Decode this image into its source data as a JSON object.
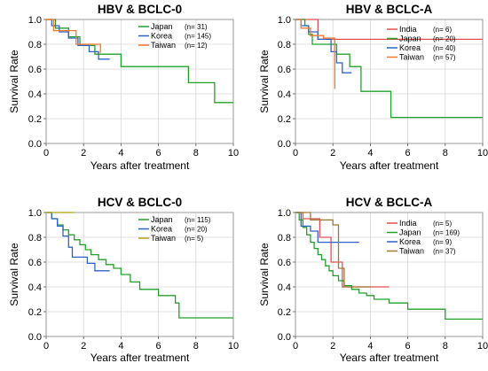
{
  "chart_data": [
    {
      "type": "line",
      "title": "HBV & BCLC-0",
      "xlabel": "Years after treatment",
      "ylabel": "Survival Rate",
      "xlim": [
        0,
        10
      ],
      "ylim": [
        0,
        1
      ],
      "xticks": [
        "0",
        "2",
        "4",
        "6",
        "8",
        "10"
      ],
      "yticks": [
        "0.0",
        "0.2",
        "0.4",
        "0.6",
        "0.8",
        "1.0"
      ],
      "legend_position": "top-right",
      "series": [
        {
          "name": "Japan",
          "n": "(n= 31)",
          "color": "#22a02a",
          "x": [
            0,
            0.5,
            0.5,
            1.2,
            1.2,
            1.8,
            1.8,
            2.6,
            2.6,
            4.0,
            4.0,
            7.6,
            7.6,
            9.0,
            9.0,
            10.0
          ],
          "y": [
            1.0,
            1.0,
            0.93,
            0.93,
            0.86,
            0.86,
            0.79,
            0.79,
            0.72,
            0.72,
            0.62,
            0.62,
            0.49,
            0.49,
            0.33,
            0.33
          ]
        },
        {
          "name": "Korea",
          "n": "(n= 145)",
          "color": "#2e64c8",
          "x": [
            0,
            0.3,
            0.3,
            0.7,
            0.7,
            1.2,
            1.2,
            1.7,
            1.7,
            2.3,
            2.3,
            2.8,
            2.8,
            3.4
          ],
          "y": [
            1.0,
            1.0,
            0.95,
            0.95,
            0.9,
            0.9,
            0.85,
            0.85,
            0.79,
            0.79,
            0.74,
            0.74,
            0.68,
            0.68
          ]
        },
        {
          "name": "Taiwan",
          "n": "(n= 12)",
          "color": "#f07828",
          "x": [
            0,
            0.4,
            0.4,
            1.6,
            1.6,
            2.9,
            2.9
          ],
          "y": [
            1.0,
            1.0,
            0.91,
            0.91,
            0.8,
            0.8,
            0.73
          ]
        }
      ]
    },
    {
      "type": "line",
      "title": "HBV & BCLC-A",
      "xlabel": "Years after treatment",
      "ylabel": "Survival Rate",
      "xlim": [
        0,
        10
      ],
      "ylim": [
        0,
        1
      ],
      "xticks": [
        "0",
        "2",
        "4",
        "6",
        "8",
        "10"
      ],
      "yticks": [
        "0.0",
        "0.2",
        "0.4",
        "0.6",
        "0.8",
        "1.0"
      ],
      "legend_position": "top-right",
      "series": [
        {
          "name": "India",
          "n": "(n= 6)",
          "color": "#e05050",
          "x": [
            0,
            1.2,
            1.2,
            10.0
          ],
          "y": [
            1.0,
            1.0,
            0.84,
            0.84
          ]
        },
        {
          "name": "Japan",
          "n": "(n= 20)",
          "color": "#22a02a",
          "x": [
            0,
            0.5,
            0.5,
            0.7,
            0.7,
            0.9,
            0.9,
            2.2,
            2.2,
            2.9,
            2.9,
            3.5,
            3.5,
            5.1,
            5.1,
            10.0
          ],
          "y": [
            1.0,
            1.0,
            0.95,
            0.95,
            0.88,
            0.88,
            0.8,
            0.8,
            0.72,
            0.72,
            0.62,
            0.62,
            0.42,
            0.42,
            0.21,
            0.21
          ]
        },
        {
          "name": "Korea",
          "n": "(n= 40)",
          "color": "#2e64c8",
          "x": [
            0,
            0.3,
            0.3,
            0.7,
            0.7,
            1.2,
            1.2,
            1.9,
            1.9,
            2.2,
            2.2,
            2.5,
            2.5,
            3.0
          ],
          "y": [
            1.0,
            1.0,
            0.95,
            0.95,
            0.9,
            0.9,
            0.84,
            0.84,
            0.74,
            0.74,
            0.65,
            0.65,
            0.57,
            0.57
          ]
        },
        {
          "name": "Taiwan",
          "n": "(n= 57)",
          "color": "#f07828",
          "x": [
            0,
            0.3,
            0.3,
            0.8,
            0.8,
            1.5,
            1.5,
            2.1,
            2.1
          ],
          "y": [
            1.0,
            1.0,
            0.93,
            0.93,
            0.87,
            0.87,
            0.85,
            0.85,
            0.44
          ]
        }
      ]
    },
    {
      "type": "line",
      "title": "HCV & BCLC-0",
      "xlabel": "Years after treatment",
      "ylabel": "Survival Rate",
      "xlim": [
        0,
        10
      ],
      "ylim": [
        0,
        1
      ],
      "xticks": [
        "0",
        "2",
        "4",
        "6",
        "8",
        "10"
      ],
      "yticks": [
        "0.0",
        "0.2",
        "0.4",
        "0.6",
        "0.8",
        "1.0"
      ],
      "legend_position": "top-right",
      "series": [
        {
          "name": "Japan",
          "n": "(n= 115)",
          "color": "#22a02a",
          "x": [
            0,
            0.3,
            0.3,
            0.6,
            0.6,
            0.9,
            0.9,
            1.2,
            1.2,
            1.5,
            1.5,
            1.8,
            1.8,
            2.1,
            2.1,
            2.4,
            2.4,
            2.8,
            2.8,
            3.2,
            3.2,
            3.6,
            3.6,
            4.0,
            4.0,
            4.5,
            4.5,
            5.0,
            5.0,
            6.0,
            6.0,
            6.9,
            6.9,
            7.1,
            7.1,
            10.0
          ],
          "y": [
            1.0,
            1.0,
            0.95,
            0.95,
            0.9,
            0.9,
            0.86,
            0.86,
            0.82,
            0.82,
            0.78,
            0.78,
            0.74,
            0.74,
            0.7,
            0.7,
            0.66,
            0.66,
            0.62,
            0.62,
            0.58,
            0.58,
            0.55,
            0.55,
            0.5,
            0.5,
            0.44,
            0.44,
            0.38,
            0.38,
            0.33,
            0.33,
            0.27,
            0.27,
            0.15,
            0.15
          ]
        },
        {
          "name": "Korea",
          "n": "(n= 20)",
          "color": "#2e64c8",
          "x": [
            0,
            0.3,
            0.3,
            0.6,
            0.6,
            0.9,
            0.9,
            1.2,
            1.2,
            1.4,
            1.4,
            2.2,
            2.2,
            2.6,
            2.6,
            3.4
          ],
          "y": [
            1.0,
            1.0,
            0.95,
            0.95,
            0.89,
            0.89,
            0.81,
            0.81,
            0.72,
            0.72,
            0.64,
            0.64,
            0.59,
            0.59,
            0.53,
            0.53
          ]
        },
        {
          "name": "Taiwan",
          "n": "(n= 5)",
          "color": "#b8a014",
          "x": [
            0,
            1.5
          ],
          "y": [
            1.0,
            1.0
          ]
        }
      ]
    },
    {
      "type": "line",
      "title": "HCV & BCLC-A",
      "xlabel": "Years after treatment",
      "ylabel": "Survival Rate",
      "xlim": [
        0,
        10
      ],
      "ylim": [
        0,
        1
      ],
      "xticks": [
        "0",
        "2",
        "4",
        "6",
        "8",
        "10"
      ],
      "yticks": [
        "0.0",
        "0.2",
        "0.4",
        "0.6",
        "0.8",
        "1.0"
      ],
      "legend_position": "top-right",
      "series": [
        {
          "name": "India",
          "n": "(n= 5)",
          "color": "#e05050",
          "x": [
            0,
            0.4,
            0.4,
            1.3,
            1.3,
            1.9,
            1.9,
            2.5,
            2.5,
            3.0,
            3.0,
            5.0
          ],
          "y": [
            1.0,
            1.0,
            0.95,
            0.95,
            0.8,
            0.8,
            0.6,
            0.6,
            0.4,
            0.4,
            0.4,
            0.4
          ]
        },
        {
          "name": "Japan",
          "n": "(n= 169)",
          "color": "#22a02a",
          "x": [
            0,
            0.2,
            0.2,
            0.4,
            0.4,
            0.6,
            0.6,
            0.8,
            0.8,
            1.0,
            1.0,
            1.2,
            1.2,
            1.4,
            1.4,
            1.6,
            1.6,
            1.8,
            1.8,
            2.0,
            2.0,
            2.3,
            2.3,
            2.6,
            2.6,
            3.0,
            3.0,
            3.4,
            3.4,
            3.8,
            3.8,
            4.2,
            4.2,
            5.0,
            5.0,
            6.0,
            6.0,
            8.0,
            8.0,
            10.0
          ],
          "y": [
            1.0,
            1.0,
            0.94,
            0.94,
            0.88,
            0.88,
            0.82,
            0.82,
            0.76,
            0.76,
            0.71,
            0.71,
            0.66,
            0.66,
            0.62,
            0.62,
            0.57,
            0.57,
            0.53,
            0.53,
            0.49,
            0.49,
            0.45,
            0.45,
            0.41,
            0.41,
            0.38,
            0.38,
            0.35,
            0.35,
            0.33,
            0.33,
            0.3,
            0.3,
            0.27,
            0.27,
            0.22,
            0.22,
            0.14,
            0.14
          ]
        },
        {
          "name": "Korea",
          "n": "(n= 9)",
          "color": "#2e64c8",
          "x": [
            0,
            0.3,
            0.3,
            0.8,
            0.8,
            1.2,
            1.2,
            3.4
          ],
          "y": [
            1.0,
            1.0,
            0.89,
            0.89,
            0.85,
            0.85,
            0.76,
            0.76
          ]
        },
        {
          "name": "Taiwan",
          "n": "(n= 37)",
          "color": "#a07830",
          "x": [
            0,
            0.8,
            0.8,
            2.0,
            2.0,
            2.3,
            2.3,
            2.6,
            2.6,
            4.0
          ],
          "y": [
            1.0,
            1.0,
            0.94,
            0.94,
            0.9,
            0.9,
            0.55,
            0.55,
            0.4,
            0.4
          ]
        }
      ]
    }
  ]
}
